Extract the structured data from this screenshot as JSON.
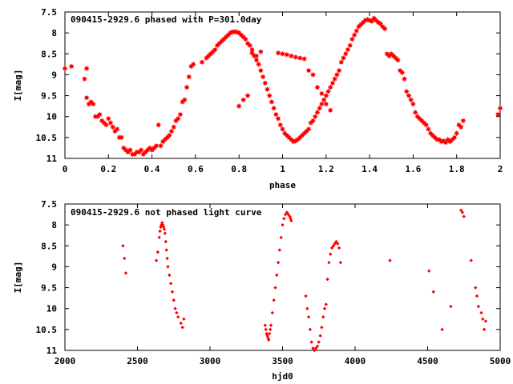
{
  "colors": {
    "points": "#ff0000",
    "axes": "#000000",
    "background": "#ffffff"
  },
  "chart_data": [
    {
      "type": "scatter",
      "title": "090415-2929.6 phased with P=301.0day",
      "xlabel": "phase",
      "ylabel": "I[mag]",
      "xlim": [
        0,
        2
      ],
      "ylim": [
        7.5,
        11
      ],
      "y_inverted": true,
      "grid": false,
      "xticks": [
        "0",
        "0.2",
        "0.4",
        "0.6",
        "0.8",
        "1",
        "1.2",
        "1.4",
        "1.6",
        "1.8",
        "2"
      ],
      "yticks": [
        "7.5",
        "8",
        "8.5",
        "9",
        "9.5",
        "10",
        "10.5",
        "11"
      ],
      "marker": "star",
      "series": [
        {
          "x": [
            0.0,
            0.03,
            0.09,
            0.1,
            0.1,
            0.11,
            0.12,
            0.13,
            0.14,
            0.15,
            0.16,
            0.17,
            0.18,
            0.19,
            0.2,
            0.21,
            0.22,
            0.23,
            0.24,
            0.25,
            0.26,
            0.27,
            0.28,
            0.29,
            0.3,
            0.31,
            0.32,
            0.33,
            0.34,
            0.35,
            0.36,
            0.37,
            0.38,
            0.39,
            0.4,
            0.41,
            0.42,
            0.43,
            0.44,
            0.45,
            0.46,
            0.47,
            0.48,
            0.49,
            0.5,
            0.51,
            0.52,
            0.53,
            0.54,
            0.55,
            0.56,
            0.57,
            0.58,
            0.59,
            0.63,
            0.65,
            0.66,
            0.67,
            0.68,
            0.69,
            0.7,
            0.71,
            0.72,
            0.73,
            0.74,
            0.75,
            0.76,
            0.77,
            0.78,
            0.79,
            0.8,
            0.81,
            0.82,
            0.83,
            0.84,
            0.85,
            0.86,
            0.87,
            0.88,
            0.89,
            0.9,
            0.91,
            0.92,
            0.93,
            0.94,
            0.95,
            0.96,
            0.97,
            0.98,
            0.99,
            1.0,
            1.01,
            1.02,
            1.03,
            1.04,
            1.05,
            1.06,
            1.07,
            1.08,
            1.09,
            1.1,
            1.11,
            1.12,
            1.13,
            1.14,
            1.15,
            1.16,
            1.17,
            1.18,
            1.19,
            1.2,
            1.21,
            1.22,
            1.23,
            1.24,
            1.25,
            1.26,
            1.27,
            1.28,
            1.29,
            1.3,
            1.31,
            1.32,
            1.33,
            1.34,
            1.35,
            1.36,
            1.37,
            1.38,
            1.39,
            1.4,
            1.41,
            1.42,
            1.43,
            1.44,
            1.45,
            1.46,
            1.47,
            1.48,
            1.49,
            1.5,
            1.51,
            1.52,
            1.53,
            1.54,
            1.55,
            1.56,
            1.57,
            1.58,
            1.59,
            1.6,
            1.61,
            1.62,
            1.63,
            1.64,
            1.65,
            1.66,
            1.67,
            1.68,
            1.69,
            1.7,
            1.71,
            1.72,
            1.73,
            1.74,
            1.75,
            1.76,
            1.77,
            1.78,
            1.79,
            1.8,
            1.81,
            1.82,
            1.83,
            1.99,
            2.0,
            0.8,
            0.82,
            0.84,
            0.86,
            0.88,
            0.9,
            0.98,
            1.0,
            1.02,
            1.04,
            1.06,
            1.08,
            1.1,
            1.12,
            1.14,
            1.16,
            1.18,
            1.2,
            1.22
          ],
          "y": [
            8.85,
            8.8,
            9.1,
            8.85,
            9.55,
            9.7,
            9.65,
            9.7,
            10.0,
            10.0,
            9.95,
            10.1,
            10.15,
            10.2,
            10.05,
            10.15,
            10.25,
            10.35,
            10.3,
            10.5,
            10.5,
            10.75,
            10.8,
            10.85,
            10.8,
            10.9,
            10.9,
            10.85,
            10.85,
            10.8,
            10.9,
            10.85,
            10.8,
            10.75,
            10.8,
            10.75,
            10.7,
            10.2,
            10.7,
            10.6,
            10.55,
            10.5,
            10.45,
            10.35,
            10.25,
            10.1,
            10.05,
            9.95,
            9.65,
            9.6,
            9.3,
            9.05,
            8.8,
            8.75,
            8.7,
            8.6,
            8.55,
            8.5,
            8.45,
            8.4,
            8.3,
            8.25,
            8.2,
            8.15,
            8.1,
            8.05,
            8.0,
            7.98,
            7.97,
            7.98,
            8.0,
            8.05,
            8.1,
            8.15,
            8.25,
            8.3,
            8.4,
            8.55,
            8.65,
            8.75,
            8.9,
            9.05,
            9.2,
            9.35,
            9.5,
            9.65,
            9.8,
            9.95,
            10.05,
            10.2,
            10.3,
            10.4,
            10.45,
            10.5,
            10.55,
            10.6,
            10.58,
            10.55,
            10.5,
            10.45,
            10.4,
            10.35,
            10.3,
            10.15,
            10.1,
            10.0,
            9.9,
            9.8,
            9.7,
            9.6,
            9.5,
            9.4,
            9.3,
            9.2,
            9.1,
            9.0,
            8.9,
            8.7,
            8.6,
            8.5,
            8.4,
            8.3,
            8.15,
            8.05,
            7.95,
            7.85,
            7.8,
            7.75,
            7.7,
            7.68,
            7.7,
            7.72,
            7.65,
            7.7,
            7.75,
            7.78,
            7.85,
            7.9,
            8.5,
            8.55,
            8.5,
            8.55,
            8.6,
            8.65,
            8.9,
            8.95,
            9.1,
            9.4,
            9.5,
            9.6,
            9.7,
            9.9,
            10.0,
            10.05,
            10.1,
            10.15,
            10.2,
            10.3,
            10.4,
            10.45,
            10.5,
            10.55,
            10.55,
            10.6,
            10.58,
            10.62,
            10.55,
            10.6,
            10.55,
            10.5,
            10.4,
            10.2,
            10.25,
            10.1,
            9.95,
            9.8,
            9.75,
            9.6,
            9.5,
            8.48,
            8.55,
            8.45,
            8.48,
            8.5,
            8.52,
            8.55,
            8.58,
            8.6,
            8.62,
            8.9,
            9.0,
            9.3,
            9.45,
            9.7,
            9.85
          ]
        }
      ]
    },
    {
      "type": "scatter",
      "title": "090415-2929.6 not phased light curve",
      "xlabel": "hjd0",
      "ylabel": "I[mag]",
      "xlim": [
        2000,
        5000
      ],
      "ylim": [
        7.5,
        11
      ],
      "y_inverted": true,
      "grid": false,
      "xticks": [
        "2000",
        "2500",
        "3000",
        "3500",
        "4000",
        "4500",
        "5000"
      ],
      "yticks": [
        "7.5",
        "8",
        "8.5",
        "9",
        "9.5",
        "10",
        "10.5",
        "11"
      ],
      "marker": "diamond",
      "series": [
        {
          "x": [
            2400,
            2410,
            2420,
            2630,
            2640,
            2650,
            2655,
            2660,
            2665,
            2670,
            2675,
            2680,
            2685,
            2690,
            2695,
            2700,
            2705,
            2710,
            2720,
            2730,
            2740,
            2750,
            2760,
            2770,
            2780,
            2800,
            2810,
            2820,
            3380,
            3385,
            3390,
            3395,
            3400,
            3405,
            3410,
            3415,
            3420,
            3430,
            3440,
            3450,
            3460,
            3470,
            3480,
            3490,
            3500,
            3510,
            3520,
            3530,
            3540,
            3550,
            3555,
            3560,
            3660,
            3670,
            3680,
            3690,
            3700,
            3710,
            3720,
            3730,
            3740,
            3750,
            3760,
            3770,
            3780,
            3790,
            3800,
            3810,
            3820,
            3830,
            3840,
            3850,
            3860,
            3870,
            3880,
            3890,
            3900,
            4240,
            4510,
            4540,
            4600,
            4660,
            4730,
            4740,
            4750,
            4800,
            4830,
            4840,
            4850,
            4870,
            4880,
            4890,
            4900
          ],
          "y": [
            8.5,
            8.8,
            9.15,
            8.85,
            8.65,
            8.3,
            8.15,
            8.05,
            8.0,
            7.95,
            8.0,
            8.05,
            8.1,
            8.2,
            8.4,
            8.6,
            8.8,
            9.0,
            9.2,
            9.4,
            9.6,
            9.8,
            10.0,
            10.1,
            10.2,
            10.35,
            10.45,
            10.25,
            10.4,
            10.5,
            10.6,
            10.65,
            10.7,
            10.75,
            10.6,
            10.5,
            10.4,
            10.1,
            9.8,
            9.5,
            9.2,
            8.9,
            8.6,
            8.3,
            8.0,
            7.85,
            7.75,
            7.7,
            7.75,
            7.8,
            7.85,
            7.9,
            9.7,
            10.0,
            10.2,
            10.5,
            10.8,
            10.95,
            11.0,
            10.95,
            10.9,
            10.8,
            10.65,
            10.45,
            10.2,
            10.0,
            9.9,
            9.3,
            8.9,
            8.7,
            8.55,
            8.5,
            8.45,
            8.4,
            8.45,
            8.55,
            8.9,
            8.85,
            9.1,
            9.6,
            10.5,
            9.95,
            7.65,
            7.7,
            7.8,
            8.85,
            9.5,
            9.7,
            9.95,
            10.1,
            10.25,
            10.5,
            10.3
          ]
        }
      ]
    }
  ]
}
